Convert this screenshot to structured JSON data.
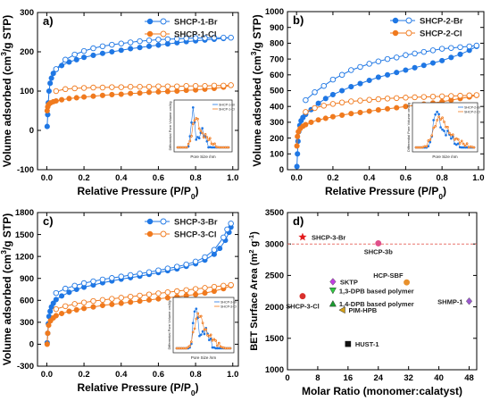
{
  "figure": {
    "colors": {
      "br": "#1f77e4",
      "cl": "#f07a1e",
      "star": "#e31a1c",
      "axis": "#000000",
      "ref_line": "#e8736c"
    }
  },
  "chart_data": [
    {
      "panel": "a)",
      "type": "scatter",
      "xlabel": "Relative Pressure (P/P0)",
      "ylabel": "Volume adsorbed (cm3/g STP)",
      "xlim": [
        -0.05,
        1.03
      ],
      "ylim": [
        -100,
        300
      ],
      "xticks": [
        "0.0",
        "0.2",
        "0.4",
        "0.6",
        "0.8",
        "1.0"
      ],
      "yticks": [
        "-100",
        "0",
        "100",
        "200",
        "300"
      ],
      "legend_placement": "top-right",
      "series": [
        {
          "name": "SHCP-1-Br",
          "color": "#1f77e4",
          "kind": "br",
          "x_ads": [
            0.002,
            0.005,
            0.008,
            0.012,
            0.018,
            0.025,
            0.035,
            0.05,
            0.08,
            0.12,
            0.16,
            0.2,
            0.25,
            0.3,
            0.35,
            0.4,
            0.45,
            0.5,
            0.55,
            0.6,
            0.65,
            0.7,
            0.75,
            0.8,
            0.85,
            0.9,
            0.95,
            0.99
          ],
          "y_ads": [
            10,
            40,
            70,
            100,
            120,
            133,
            145,
            155,
            165,
            174,
            180,
            186,
            191,
            196,
            200,
            204,
            208,
            211,
            214,
            217,
            220,
            223,
            226,
            228,
            230,
            232,
            234,
            236
          ],
          "x_des": [
            0.99,
            0.95,
            0.9,
            0.85,
            0.8,
            0.75,
            0.7,
            0.65,
            0.6,
            0.55,
            0.5,
            0.45,
            0.4,
            0.35,
            0.3,
            0.25,
            0.2,
            0.15,
            0.1,
            0.05
          ],
          "y_des": [
            236,
            236,
            236,
            235,
            235,
            234,
            233,
            232,
            231,
            229,
            227,
            224,
            221,
            218,
            214,
            209,
            202,
            193,
            180,
            156
          ]
        },
        {
          "name": "SHCP-1-Cl",
          "color": "#f07a1e",
          "kind": "cl",
          "x_ads": [
            0.002,
            0.005,
            0.01,
            0.02,
            0.035,
            0.05,
            0.08,
            0.12,
            0.16,
            0.2,
            0.25,
            0.3,
            0.35,
            0.4,
            0.45,
            0.5,
            0.55,
            0.6,
            0.65,
            0.7,
            0.75,
            0.8,
            0.85,
            0.9,
            0.95,
            0.99
          ],
          "y_ads": [
            50,
            60,
            66,
            70,
            73,
            75,
            78,
            81,
            83,
            85,
            87,
            89,
            91,
            92,
            94,
            95,
            97,
            98,
            99,
            100,
            102,
            103,
            105,
            107,
            110,
            115
          ],
          "x_des": [
            0.99,
            0.95,
            0.9,
            0.85,
            0.8,
            0.75,
            0.7,
            0.65,
            0.6,
            0.55,
            0.5,
            0.45,
            0.4,
            0.35,
            0.3,
            0.25,
            0.2,
            0.15,
            0.1,
            0.05
          ],
          "y_des": [
            115,
            114,
            114,
            113,
            113,
            113,
            112,
            112,
            112,
            111,
            111,
            111,
            110,
            110,
            109,
            109,
            108,
            107,
            105,
            100
          ]
        }
      ],
      "inset": {
        "xlabel": "Pore Size /nm",
        "ylabel": "Differential Pore Volume cm3/g",
        "legend": [
          "SHCP-1-Br",
          "SHCP-1-Cl"
        ]
      }
    },
    {
      "panel": "b)",
      "type": "scatter",
      "xlabel": "Relative Pressure (P/P0)",
      "ylabel": "Volume adsorbed (cm3/g STP)",
      "xlim": [
        -0.05,
        1.03
      ],
      "ylim": [
        0,
        1000
      ],
      "xticks": [
        "0.0",
        "0.2",
        "0.4",
        "0.6",
        "0.8",
        "1.0"
      ],
      "yticks": [
        "0",
        "100",
        "200",
        "300",
        "400",
        "500",
        "600",
        "700",
        "800",
        "900",
        "1000"
      ],
      "legend_placement": "top-right",
      "series": [
        {
          "name": "SHCP-2-Br",
          "color": "#1f77e4",
          "kind": "br",
          "x_ads": [
            0.002,
            0.005,
            0.008,
            0.012,
            0.018,
            0.025,
            0.035,
            0.05,
            0.08,
            0.12,
            0.16,
            0.2,
            0.25,
            0.3,
            0.35,
            0.4,
            0.45,
            0.5,
            0.55,
            0.6,
            0.65,
            0.7,
            0.75,
            0.8,
            0.85,
            0.9,
            0.95,
            0.99
          ],
          "y_ads": [
            20,
            100,
            180,
            240,
            280,
            310,
            330,
            350,
            380,
            420,
            450,
            475,
            500,
            525,
            545,
            565,
            585,
            600,
            615,
            630,
            645,
            660,
            675,
            690,
            710,
            730,
            755,
            780
          ],
          "x_des": [
            0.99,
            0.95,
            0.9,
            0.85,
            0.8,
            0.75,
            0.7,
            0.65,
            0.6,
            0.55,
            0.5,
            0.45,
            0.4,
            0.35,
            0.3,
            0.25,
            0.2,
            0.15,
            0.1,
            0.05
          ],
          "y_des": [
            785,
            780,
            775,
            770,
            765,
            755,
            745,
            735,
            725,
            710,
            700,
            685,
            670,
            650,
            630,
            600,
            570,
            530,
            490,
            440
          ]
        },
        {
          "name": "SHCP-2-Cl",
          "color": "#f07a1e",
          "kind": "cl",
          "x_ads": [
            0.002,
            0.005,
            0.01,
            0.02,
            0.035,
            0.05,
            0.08,
            0.12,
            0.16,
            0.2,
            0.25,
            0.3,
            0.35,
            0.4,
            0.45,
            0.5,
            0.55,
            0.6,
            0.65,
            0.7,
            0.75,
            0.8,
            0.85,
            0.9,
            0.95,
            0.99
          ],
          "y_ads": [
            150,
            210,
            240,
            260,
            275,
            285,
            300,
            315,
            325,
            335,
            345,
            355,
            362,
            370,
            378,
            385,
            392,
            400,
            407,
            415,
            422,
            430,
            440,
            450,
            460,
            470
          ],
          "x_des": [
            0.99,
            0.95,
            0.9,
            0.85,
            0.8,
            0.75,
            0.7,
            0.65,
            0.6,
            0.55,
            0.5,
            0.45,
            0.4,
            0.35,
            0.3,
            0.25,
            0.2,
            0.15,
            0.1,
            0.05
          ],
          "y_des": [
            472,
            470,
            468,
            466,
            464,
            462,
            460,
            458,
            456,
            453,
            450,
            446,
            442,
            437,
            432,
            425,
            416,
            405,
            390,
            365
          ]
        }
      ],
      "inset": {
        "xlabel": "Pore Size /nm",
        "ylabel": "Differential Pore Volume cm3/g",
        "legend": [
          "SHCP-2-Br",
          "SHCP-2-Cl"
        ]
      }
    },
    {
      "panel": "c)",
      "type": "scatter",
      "xlabel": "Relative Pressure (P/P0)",
      "ylabel": "Volume adsorbed (cm3/g STP)",
      "xlim": [
        -0.05,
        1.03
      ],
      "ylim": [
        -300,
        1800
      ],
      "xticks": [
        "0.0",
        "0.2",
        "0.4",
        "0.6",
        "0.8",
        "1.0"
      ],
      "yticks": [
        "-300",
        "0",
        "300",
        "600",
        "900",
        "1200",
        "1500",
        "1800"
      ],
      "legend_placement": "top-right",
      "series": [
        {
          "name": "SHCP-3-Br",
          "color": "#1f77e4",
          "kind": "br",
          "x_ads": [
            0.002,
            0.005,
            0.008,
            0.012,
            0.018,
            0.025,
            0.035,
            0.05,
            0.08,
            0.12,
            0.16,
            0.2,
            0.25,
            0.3,
            0.35,
            0.4,
            0.45,
            0.5,
            0.55,
            0.6,
            0.65,
            0.7,
            0.75,
            0.8,
            0.85,
            0.9,
            0.93,
            0.96,
            0.98,
            0.99
          ],
          "y_ads": [
            20,
            150,
            280,
            380,
            450,
            510,
            560,
            610,
            660,
            710,
            750,
            780,
            810,
            840,
            865,
            890,
            910,
            930,
            955,
            980,
            1005,
            1030,
            1065,
            1100,
            1150,
            1230,
            1310,
            1420,
            1530,
            1600
          ],
          "x_des": [
            0.99,
            0.97,
            0.95,
            0.9,
            0.85,
            0.8,
            0.75,
            0.7,
            0.65,
            0.6,
            0.55,
            0.5,
            0.45,
            0.4,
            0.35,
            0.3,
            0.25,
            0.2,
            0.15,
            0.1,
            0.05
          ],
          "y_des": [
            1650,
            1570,
            1460,
            1290,
            1190,
            1130,
            1090,
            1060,
            1035,
            1010,
            985,
            965,
            945,
            925,
            905,
            885,
            860,
            835,
            800,
            760,
            700
          ]
        },
        {
          "name": "SHCP-3-Cl",
          "color": "#f07a1e",
          "kind": "cl",
          "x_ads": [
            0.002,
            0.005,
            0.01,
            0.02,
            0.035,
            0.05,
            0.08,
            0.12,
            0.16,
            0.2,
            0.25,
            0.3,
            0.35,
            0.4,
            0.45,
            0.5,
            0.55,
            0.6,
            0.65,
            0.7,
            0.75,
            0.8,
            0.85,
            0.9,
            0.95,
            0.99
          ],
          "y_ads": [
            0,
            150,
            260,
            320,
            360,
            390,
            420,
            450,
            470,
            490,
            510,
            530,
            545,
            560,
            575,
            590,
            605,
            620,
            635,
            650,
            665,
            680,
            700,
            725,
            760,
            800
          ],
          "x_des": [
            0.99,
            0.95,
            0.9,
            0.85,
            0.8,
            0.75,
            0.7,
            0.65,
            0.6,
            0.55,
            0.5,
            0.45,
            0.4,
            0.35,
            0.3,
            0.25,
            0.2,
            0.15,
            0.1,
            0.05
          ],
          "y_des": [
            810,
            800,
            785,
            770,
            755,
            740,
            725,
            710,
            695,
            680,
            665,
            650,
            635,
            620,
            605,
            590,
            570,
            550,
            520,
            480
          ]
        }
      ],
      "inset": {
        "xlabel": "Pore Size /nm",
        "ylabel": "Differential Pore Volume cm3/g",
        "legend": [
          "SHCP-3-Br",
          "SHCP-3-Cl"
        ]
      }
    },
    {
      "panel": "d)",
      "type": "scatter",
      "xlabel": "Molar Ratio (monomer:calatyst)",
      "ylabel": "BET Surface Area (m2 g-1)",
      "xlim": [
        0,
        50
      ],
      "ylim": [
        1000,
        3500
      ],
      "xticks": [
        "0",
        "8",
        "16",
        "24",
        "32",
        "40",
        "48"
      ],
      "yticks": [
        "1000",
        "1500",
        "2000",
        "2500",
        "3000",
        "3500"
      ],
      "reference_line": 3000,
      "points": [
        {
          "label": "SHCP-3-Br",
          "x": 4,
          "y": 3110,
          "marker": "star",
          "color": "#e31a1c"
        },
        {
          "label": "SHCP-3b",
          "x": 24,
          "y": 3010,
          "marker": "circle",
          "color": "#e0508a"
        },
        {
          "label": "SHCP-3-Cl",
          "x": 4,
          "y": 2170,
          "marker": "circle",
          "color": "#d9302c"
        },
        {
          "label": "SKTP",
          "x": 12,
          "y": 2400,
          "marker": "diamond",
          "color": "#c040e0"
        },
        {
          "label": "1,3-DPB based polymer",
          "x": 12,
          "y": 2260,
          "marker": "down-triangle",
          "color": "#2ecc40"
        },
        {
          "label": "1,4-DPB based polymer",
          "x": 12,
          "y": 2050,
          "marker": "up-triangle",
          "color": "#1a9c30"
        },
        {
          "label": "PIM-HPB",
          "x": 14.5,
          "y": 1950,
          "marker": "left-triangle",
          "color": "#d4a017"
        },
        {
          "label": "HCP-SBF",
          "x": 31.5,
          "y": 2390,
          "marker": "circle",
          "color": "#e8912d"
        },
        {
          "label": "SHMP-1",
          "x": 48,
          "y": 2090,
          "marker": "diamond",
          "color": "#9b59d0"
        },
        {
          "label": "HUST-1",
          "x": 16,
          "y": 1410,
          "marker": "square",
          "color": "#111111"
        }
      ]
    }
  ]
}
